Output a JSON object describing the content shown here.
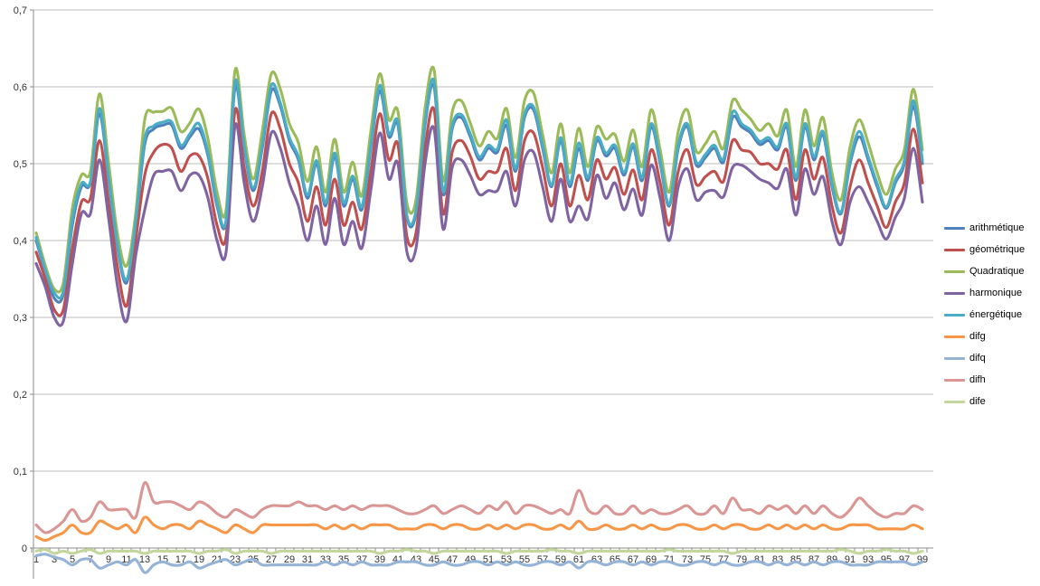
{
  "chart_data": {
    "type": "line",
    "title": "",
    "xlabel": "",
    "ylabel": "",
    "grid": true,
    "smoothed_lines": true,
    "legend_position": "right",
    "y_axis": {
      "min": 0,
      "max": 0.7,
      "tick_step": 0.1,
      "decimal_separator": ","
    },
    "y_tick_labels": [
      "0",
      "0,1",
      "0,2",
      "0,3",
      "0,4",
      "0,5",
      "0,6",
      "0,7"
    ],
    "x": [
      1,
      2,
      3,
      4,
      5,
      6,
      7,
      8,
      9,
      10,
      11,
      12,
      13,
      14,
      15,
      16,
      17,
      18,
      19,
      20,
      21,
      22,
      23,
      24,
      25,
      26,
      27,
      28,
      29,
      30,
      31,
      32,
      33,
      34,
      35,
      36,
      37,
      38,
      39,
      40,
      41,
      42,
      43,
      44,
      45,
      46,
      47,
      48,
      49,
      50,
      51,
      52,
      53,
      54,
      55,
      56,
      57,
      58,
      59,
      60,
      61,
      62,
      63,
      64,
      65,
      66,
      67,
      68,
      69,
      70,
      71,
      72,
      73,
      74,
      75,
      76,
      77,
      78,
      79,
      80,
      81,
      82,
      83,
      84,
      85,
      86,
      87,
      88,
      89,
      90,
      91,
      92,
      93,
      94,
      95,
      96,
      97,
      98,
      99
    ],
    "x_tick_labels": [
      "1",
      "3",
      "5",
      "7",
      "9",
      "11",
      "13",
      "15",
      "17",
      "19",
      "21",
      "23",
      "25",
      "27",
      "29",
      "31",
      "33",
      "35",
      "37",
      "39",
      "41",
      "43",
      "45",
      "47",
      "49",
      "51",
      "53",
      "55",
      "57",
      "59",
      "61",
      "63",
      "65",
      "67",
      "69",
      "71",
      "73",
      "75",
      "77",
      "79",
      "81",
      "83",
      "85",
      "87",
      "89",
      "91",
      "93",
      "95",
      "97",
      "99"
    ],
    "series": [
      {
        "name": "arithmétique",
        "color": "#4F81BD",
        "values": [
          0.4,
          0.36,
          0.325,
          0.33,
          0.42,
          0.47,
          0.475,
          0.565,
          0.48,
          0.39,
          0.345,
          0.42,
          0.525,
          0.545,
          0.55,
          0.55,
          0.52,
          0.535,
          0.545,
          0.51,
          0.445,
          0.425,
          0.6,
          0.52,
          0.465,
          0.52,
          0.595,
          0.575,
          0.53,
          0.505,
          0.455,
          0.5,
          0.445,
          0.51,
          0.445,
          0.48,
          0.44,
          0.52,
          0.595,
          0.535,
          0.55,
          0.43,
          0.435,
          0.55,
          0.6,
          0.46,
          0.545,
          0.56,
          0.535,
          0.505,
          0.52,
          0.515,
          0.55,
          0.49,
          0.56,
          0.57,
          0.52,
          0.47,
          0.53,
          0.47,
          0.52,
          0.478,
          0.53,
          0.51,
          0.52,
          0.485,
          0.522,
          0.478,
          0.548,
          0.5,
          0.445,
          0.52,
          0.548,
          0.498,
          0.508,
          0.52,
          0.502,
          0.56,
          0.548,
          0.54,
          0.525,
          0.53,
          0.518,
          0.548,
          0.478,
          0.548,
          0.505,
          0.538,
          0.47,
          0.435,
          0.5,
          0.535,
          0.505,
          0.47,
          0.442,
          0.475,
          0.5,
          0.575,
          0.5
        ]
      },
      {
        "name": "géométrique",
        "color": "#C0504D",
        "values": [
          0.385,
          0.35,
          0.31,
          0.31,
          0.39,
          0.45,
          0.455,
          0.53,
          0.45,
          0.365,
          0.315,
          0.4,
          0.485,
          0.515,
          0.525,
          0.52,
          0.49,
          0.51,
          0.51,
          0.48,
          0.42,
          0.405,
          0.57,
          0.495,
          0.445,
          0.49,
          0.565,
          0.545,
          0.5,
          0.475,
          0.425,
          0.47,
          0.42,
          0.48,
          0.42,
          0.45,
          0.415,
          0.49,
          0.565,
          0.505,
          0.525,
          0.405,
          0.41,
          0.52,
          0.57,
          0.435,
          0.515,
          0.53,
          0.51,
          0.48,
          0.49,
          0.49,
          0.52,
          0.465,
          0.53,
          0.54,
          0.495,
          0.445,
          0.5,
          0.445,
          0.485,
          0.453,
          0.505,
          0.48,
          0.495,
          0.46,
          0.492,
          0.453,
          0.518,
          0.475,
          0.42,
          0.49,
          0.518,
          0.473,
          0.483,
          0.49,
          0.477,
          0.53,
          0.518,
          0.515,
          0.5,
          0.5,
          0.493,
          0.518,
          0.453,
          0.518,
          0.48,
          0.508,
          0.445,
          0.41,
          0.47,
          0.505,
          0.475,
          0.445,
          0.417,
          0.45,
          0.475,
          0.545,
          0.475
        ]
      },
      {
        "name": "Quadratique",
        "color": "#9BBB59",
        "values": [
          0.41,
          0.368,
          0.337,
          0.345,
          0.442,
          0.485,
          0.49,
          0.591,
          0.502,
          0.408,
          0.367,
          0.435,
          0.557,
          0.567,
          0.568,
          0.572,
          0.542,
          0.553,
          0.571,
          0.532,
          0.463,
          0.44,
          0.622,
          0.538,
          0.48,
          0.542,
          0.617,
          0.597,
          0.552,
          0.527,
          0.477,
          0.522,
          0.463,
          0.532,
          0.463,
          0.502,
          0.458,
          0.542,
          0.617,
          0.557,
          0.568,
          0.448,
          0.453,
          0.572,
          0.622,
          0.478,
          0.567,
          0.582,
          0.553,
          0.523,
          0.542,
          0.533,
          0.572,
          0.508,
          0.582,
          0.592,
          0.538,
          0.488,
          0.552,
          0.488,
          0.546,
          0.496,
          0.548,
          0.532,
          0.538,
          0.503,
          0.544,
          0.496,
          0.57,
          0.518,
          0.463,
          0.542,
          0.57,
          0.516,
          0.526,
          0.542,
          0.52,
          0.582,
          0.57,
          0.558,
          0.543,
          0.552,
          0.536,
          0.57,
          0.496,
          0.57,
          0.523,
          0.56,
          0.488,
          0.453,
          0.522,
          0.557,
          0.527,
          0.488,
          0.46,
          0.493,
          0.518,
          0.597,
          0.518
        ]
      },
      {
        "name": "harmonique",
        "color": "#8064A2",
        "values": [
          0.37,
          0.34,
          0.3,
          0.295,
          0.37,
          0.435,
          0.435,
          0.505,
          0.43,
          0.34,
          0.295,
          0.38,
          0.44,
          0.485,
          0.49,
          0.49,
          0.465,
          0.485,
          0.485,
          0.455,
          0.4,
          0.385,
          0.55,
          0.475,
          0.425,
          0.47,
          0.54,
          0.52,
          0.475,
          0.445,
          0.4,
          0.445,
          0.395,
          0.455,
          0.395,
          0.425,
          0.39,
          0.465,
          0.54,
          0.48,
          0.5,
          0.385,
          0.39,
          0.5,
          0.545,
          0.415,
          0.495,
          0.505,
          0.485,
          0.46,
          0.465,
          0.465,
          0.49,
          0.445,
          0.505,
          0.515,
          0.47,
          0.425,
          0.48,
          0.425,
          0.445,
          0.428,
          0.485,
          0.455,
          0.475,
          0.44,
          0.467,
          0.433,
          0.498,
          0.455,
          0.4,
          0.47,
          0.493,
          0.453,
          0.463,
          0.465,
          0.457,
          0.495,
          0.498,
          0.49,
          0.48,
          0.475,
          0.468,
          0.493,
          0.433,
          0.493,
          0.46,
          0.483,
          0.425,
          0.395,
          0.45,
          0.47,
          0.45,
          0.425,
          0.402,
          0.43,
          0.455,
          0.52,
          0.45
        ]
      },
      {
        "name": "énergétique",
        "color": "#4BACC6",
        "values": [
          0.404,
          0.362,
          0.332,
          0.334,
          0.427,
          0.474,
          0.477,
          0.572,
          0.484,
          0.394,
          0.349,
          0.424,
          0.532,
          0.549,
          0.554,
          0.554,
          0.524,
          0.539,
          0.552,
          0.514,
          0.449,
          0.427,
          0.607,
          0.524,
          0.469,
          0.524,
          0.602,
          0.579,
          0.534,
          0.509,
          0.459,
          0.504,
          0.449,
          0.514,
          0.449,
          0.484,
          0.444,
          0.524,
          0.602,
          0.539,
          0.554,
          0.432,
          0.439,
          0.554,
          0.607,
          0.464,
          0.549,
          0.564,
          0.539,
          0.509,
          0.524,
          0.519,
          0.557,
          0.494,
          0.564,
          0.574,
          0.524,
          0.472,
          0.534,
          0.474,
          0.527,
          0.482,
          0.534,
          0.514,
          0.524,
          0.489,
          0.526,
          0.482,
          0.552,
          0.504,
          0.447,
          0.524,
          0.552,
          0.502,
          0.512,
          0.524,
          0.506,
          0.567,
          0.552,
          0.544,
          0.529,
          0.534,
          0.522,
          0.552,
          0.482,
          0.552,
          0.509,
          0.542,
          0.474,
          0.437,
          0.504,
          0.542,
          0.509,
          0.474,
          0.444,
          0.479,
          0.504,
          0.582,
          0.504
        ]
      },
      {
        "name": "difg",
        "color": "#F79646",
        "values": [
          0.015,
          0.01,
          0.015,
          0.02,
          0.03,
          0.02,
          0.02,
          0.035,
          0.03,
          0.025,
          0.03,
          0.02,
          0.04,
          0.03,
          0.025,
          0.03,
          0.03,
          0.025,
          0.035,
          0.03,
          0.025,
          0.02,
          0.03,
          0.025,
          0.02,
          0.03,
          0.03,
          0.03,
          0.03,
          0.03,
          0.03,
          0.03,
          0.025,
          0.03,
          0.025,
          0.03,
          0.025,
          0.03,
          0.03,
          0.03,
          0.025,
          0.025,
          0.025,
          0.03,
          0.03,
          0.025,
          0.03,
          0.03,
          0.025,
          0.025,
          0.03,
          0.025,
          0.03,
          0.025,
          0.03,
          0.03,
          0.025,
          0.025,
          0.03,
          0.025,
          0.035,
          0.025,
          0.025,
          0.03,
          0.025,
          0.025,
          0.03,
          0.025,
          0.03,
          0.025,
          0.025,
          0.03,
          0.03,
          0.025,
          0.025,
          0.03,
          0.025,
          0.03,
          0.03,
          0.025,
          0.025,
          0.03,
          0.025,
          0.03,
          0.025,
          0.03,
          0.025,
          0.03,
          0.025,
          0.025,
          0.03,
          0.03,
          0.03,
          0.025,
          0.025,
          0.025,
          0.025,
          0.03,
          0.025
        ]
      },
      {
        "name": "difq",
        "color": "#95B3D7",
        "values": [
          -0.01,
          -0.008,
          -0.012,
          -0.015,
          -0.022,
          -0.015,
          -0.015,
          -0.026,
          -0.022,
          -0.018,
          -0.022,
          -0.015,
          -0.032,
          -0.022,
          -0.018,
          -0.022,
          -0.022,
          -0.018,
          -0.026,
          -0.022,
          -0.018,
          -0.015,
          -0.022,
          -0.018,
          -0.015,
          -0.022,
          -0.022,
          -0.022,
          -0.022,
          -0.022,
          -0.022,
          -0.022,
          -0.018,
          -0.022,
          -0.018,
          -0.022,
          -0.018,
          -0.022,
          -0.022,
          -0.022,
          -0.018,
          -0.018,
          -0.018,
          -0.022,
          -0.022,
          -0.018,
          -0.022,
          -0.022,
          -0.018,
          -0.018,
          -0.022,
          -0.018,
          -0.022,
          -0.018,
          -0.022,
          -0.022,
          -0.018,
          -0.018,
          -0.022,
          -0.018,
          -0.026,
          -0.018,
          -0.018,
          -0.022,
          -0.018,
          -0.018,
          -0.022,
          -0.018,
          -0.022,
          -0.018,
          -0.018,
          -0.022,
          -0.022,
          -0.018,
          -0.018,
          -0.022,
          -0.018,
          -0.022,
          -0.022,
          -0.018,
          -0.018,
          -0.022,
          -0.018,
          -0.022,
          -0.018,
          -0.022,
          -0.018,
          -0.022,
          -0.018,
          -0.018,
          -0.022,
          -0.022,
          -0.022,
          -0.018,
          -0.018,
          -0.018,
          -0.018,
          -0.022,
          -0.018
        ]
      },
      {
        "name": "difh",
        "color": "#D99694",
        "values": [
          0.03,
          0.02,
          0.025,
          0.035,
          0.05,
          0.035,
          0.04,
          0.06,
          0.05,
          0.05,
          0.05,
          0.04,
          0.085,
          0.06,
          0.06,
          0.06,
          0.055,
          0.05,
          0.06,
          0.055,
          0.045,
          0.04,
          0.05,
          0.045,
          0.04,
          0.05,
          0.055,
          0.055,
          0.055,
          0.06,
          0.055,
          0.055,
          0.05,
          0.055,
          0.05,
          0.055,
          0.05,
          0.055,
          0.055,
          0.055,
          0.05,
          0.045,
          0.045,
          0.05,
          0.055,
          0.045,
          0.05,
          0.055,
          0.05,
          0.045,
          0.055,
          0.05,
          0.06,
          0.045,
          0.055,
          0.055,
          0.05,
          0.045,
          0.05,
          0.045,
          0.075,
          0.05,
          0.045,
          0.055,
          0.045,
          0.045,
          0.055,
          0.045,
          0.05,
          0.045,
          0.045,
          0.05,
          0.055,
          0.045,
          0.045,
          0.055,
          0.045,
          0.065,
          0.05,
          0.05,
          0.045,
          0.055,
          0.05,
          0.055,
          0.045,
          0.055,
          0.045,
          0.055,
          0.045,
          0.04,
          0.05,
          0.065,
          0.055,
          0.045,
          0.04,
          0.045,
          0.045,
          0.055,
          0.05
        ]
      },
      {
        "name": "dife",
        "color": "#C3D69B",
        "values": [
          -0.004,
          -0.002,
          -0.007,
          -0.004,
          -0.007,
          -0.004,
          -0.002,
          -0.007,
          -0.004,
          -0.004,
          -0.004,
          -0.004,
          -0.007,
          -0.004,
          -0.004,
          -0.004,
          -0.004,
          -0.004,
          -0.007,
          -0.004,
          -0.004,
          -0.002,
          -0.007,
          -0.004,
          -0.004,
          -0.004,
          -0.007,
          -0.004,
          -0.004,
          -0.004,
          -0.004,
          -0.004,
          -0.004,
          -0.004,
          -0.004,
          -0.004,
          -0.004,
          -0.004,
          -0.007,
          -0.004,
          -0.004,
          -0.002,
          -0.004,
          -0.004,
          -0.007,
          -0.004,
          -0.004,
          -0.004,
          -0.004,
          -0.004,
          -0.004,
          -0.004,
          -0.007,
          -0.004,
          -0.004,
          -0.004,
          -0.004,
          -0.002,
          -0.004,
          -0.004,
          -0.007,
          -0.004,
          -0.004,
          -0.004,
          -0.004,
          -0.004,
          -0.004,
          -0.004,
          -0.004,
          -0.004,
          -0.002,
          -0.004,
          -0.004,
          -0.004,
          -0.004,
          -0.004,
          -0.004,
          -0.007,
          -0.004,
          -0.004,
          -0.004,
          -0.004,
          -0.004,
          -0.004,
          -0.004,
          -0.004,
          -0.004,
          -0.004,
          -0.004,
          -0.002,
          -0.004,
          -0.007,
          -0.004,
          -0.004,
          -0.002,
          -0.004,
          -0.004,
          -0.007,
          -0.004
        ]
      }
    ]
  },
  "axis_style": {
    "gridline_color": "#BDBDBD",
    "axis_line_color": "#8C8C8C",
    "tick_label_color": "#333333"
  }
}
